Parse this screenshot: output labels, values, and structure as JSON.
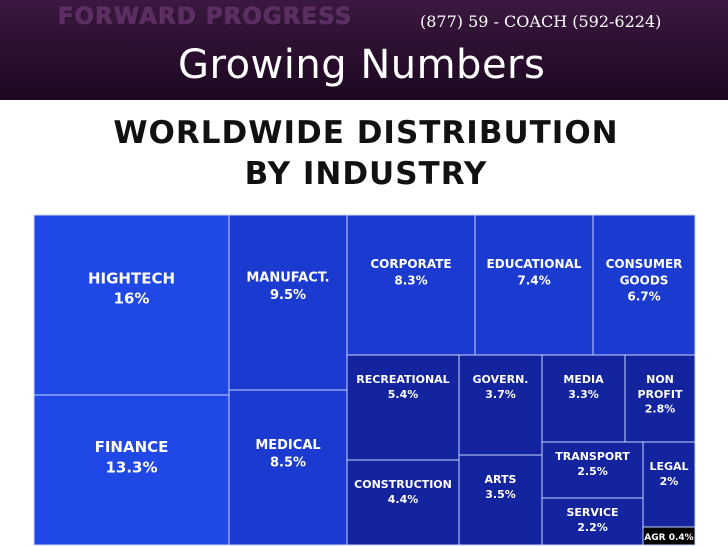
{
  "header": {
    "brand": "FORWARD PROGRESS",
    "phone": "(877) 59 - COACH (592-6224)",
    "slide_title": "Growing Numbers"
  },
  "colors": {
    "header_bg": "#2a0f2e",
    "tile_light": "#1f48e6",
    "tile_mid": "#1a3ad0",
    "tile_dark": "#14249e",
    "tile_black": "#000000"
  },
  "chart_data": {
    "type": "treemap",
    "title": "WORLDWIDE DISTRIBUTION BY INDUSTRY",
    "items": [
      {
        "name": "HIGHTECH",
        "display": "16%",
        "value": 16
      },
      {
        "name": "FINANCE",
        "display": "13.3%",
        "value": 13.3
      },
      {
        "name": "MANUFACT.",
        "display": "9.5%",
        "value": 9.5
      },
      {
        "name": "MEDICAL",
        "display": "8.5%",
        "value": 8.5
      },
      {
        "name": "CORPORATE",
        "display": "8.3%",
        "value": 8.3
      },
      {
        "name": "EDUCATIONAL",
        "display": "7.4%",
        "value": 7.4
      },
      {
        "name": "CONSUMER GOODS",
        "display": "6.7%",
        "value": 6.7
      },
      {
        "name": "RECREATIONAL",
        "display": "5.4%",
        "value": 5.4
      },
      {
        "name": "CONSTRUCTION",
        "display": "4.4%",
        "value": 4.4
      },
      {
        "name": "GOVERN.",
        "display": "3.7%",
        "value": 3.7
      },
      {
        "name": "ARTS",
        "display": "3.5%",
        "value": 3.5
      },
      {
        "name": "MEDIA",
        "display": "3.3%",
        "value": 3.3
      },
      {
        "name": "NON PROFIT",
        "display": "2.8%",
        "value": 2.8
      },
      {
        "name": "TRANSPORT",
        "display": "2.5%",
        "value": 2.5
      },
      {
        "name": "LEGAL",
        "display": "2%",
        "value": 2
      },
      {
        "name": "SERVICE",
        "display": "2.2%",
        "value": 2.2
      },
      {
        "name": "AGR",
        "display": "0.4%",
        "value": 0.4
      }
    ]
  }
}
